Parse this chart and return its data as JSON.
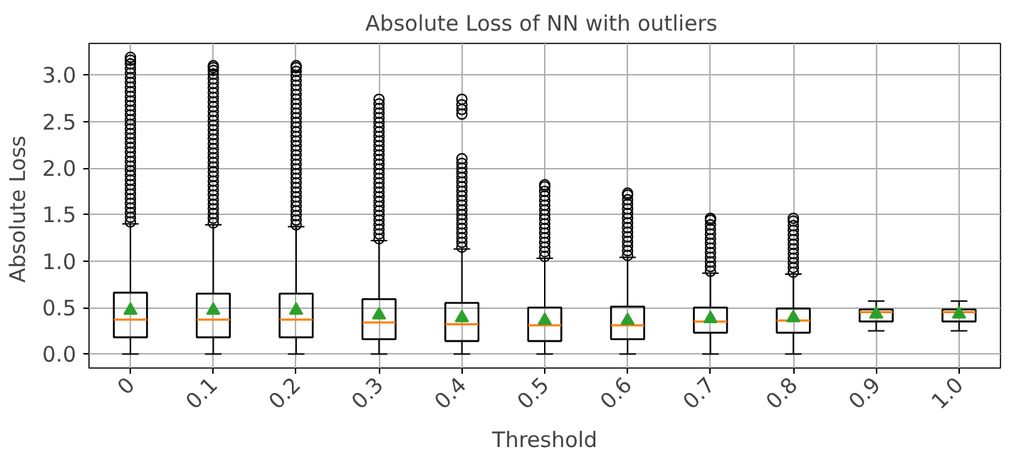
{
  "chart_data": {
    "type": "box",
    "title": "Absolute Loss of  NN with outliers",
    "xlabel": "Threshold",
    "ylabel": "Absolute  Loss",
    "categories": [
      "0",
      "0.1",
      "0.2",
      "0.3",
      "0.4",
      "0.5",
      "0.6",
      "0.7",
      "0.8",
      "0.9",
      "1.0"
    ],
    "boxes": [
      {
        "low": 0,
        "q1": 0.18,
        "median": 0.37,
        "q3": 0.66,
        "high": 1.4,
        "mean": 0.47,
        "outliers": [
          1.42,
          1.47,
          1.52,
          1.57,
          1.62,
          1.67,
          1.72,
          1.77,
          1.82,
          1.87,
          1.92,
          1.97,
          2.02,
          2.07,
          2.12,
          2.17,
          2.22,
          2.27,
          2.32,
          2.37,
          2.42,
          2.47,
          2.52,
          2.57,
          2.62,
          2.67,
          2.72,
          2.77,
          2.82,
          2.87,
          2.92,
          2.97,
          3.02,
          3.07,
          3.12,
          3.16,
          3.19
        ]
      },
      {
        "low": 0,
        "q1": 0.18,
        "median": 0.37,
        "q3": 0.65,
        "high": 1.39,
        "mean": 0.47,
        "outliers": [
          1.41,
          1.46,
          1.51,
          1.56,
          1.61,
          1.66,
          1.71,
          1.76,
          1.81,
          1.86,
          1.91,
          1.96,
          2.01,
          2.06,
          2.11,
          2.16,
          2.21,
          2.26,
          2.31,
          2.36,
          2.41,
          2.46,
          2.51,
          2.56,
          2.61,
          2.66,
          2.71,
          2.76,
          2.81,
          2.86,
          2.91,
          2.96,
          3.01,
          3.05,
          3.08,
          3.1
        ]
      },
      {
        "low": 0,
        "q1": 0.18,
        "median": 0.37,
        "q3": 0.65,
        "high": 1.37,
        "mean": 0.47,
        "outliers": [
          1.39,
          1.44,
          1.49,
          1.54,
          1.59,
          1.64,
          1.69,
          1.74,
          1.79,
          1.84,
          1.89,
          1.94,
          1.99,
          2.04,
          2.09,
          2.14,
          2.19,
          2.24,
          2.29,
          2.34,
          2.39,
          2.44,
          2.49,
          2.54,
          2.59,
          2.64,
          2.69,
          2.74,
          2.79,
          2.84,
          2.89,
          2.94,
          2.99,
          3.04,
          3.08,
          3.1
        ]
      },
      {
        "low": 0,
        "q1": 0.16,
        "median": 0.34,
        "q3": 0.59,
        "high": 1.22,
        "mean": 0.42,
        "outliers": [
          1.24,
          1.29,
          1.34,
          1.39,
          1.44,
          1.49,
          1.54,
          1.59,
          1.64,
          1.69,
          1.74,
          1.79,
          1.84,
          1.89,
          1.94,
          1.99,
          2.04,
          2.09,
          2.14,
          2.19,
          2.24,
          2.29,
          2.34,
          2.39,
          2.44,
          2.49,
          2.54,
          2.59,
          2.64,
          2.69,
          2.74
        ]
      },
      {
        "low": 0,
        "q1": 0.14,
        "median": 0.32,
        "q3": 0.55,
        "high": 1.13,
        "mean": 0.39,
        "outliers": [
          1.15,
          1.2,
          1.25,
          1.3,
          1.35,
          1.4,
          1.45,
          1.5,
          1.55,
          1.6,
          1.65,
          1.7,
          1.75,
          1.8,
          1.85,
          1.9,
          1.95,
          2.0,
          2.05,
          2.1,
          2.58,
          2.63,
          2.68,
          2.74
        ]
      },
      {
        "low": 0,
        "q1": 0.14,
        "median": 0.31,
        "q3": 0.5,
        "high": 1.03,
        "mean": 0.36,
        "outliers": [
          1.05,
          1.1,
          1.15,
          1.2,
          1.25,
          1.3,
          1.35,
          1.4,
          1.45,
          1.5,
          1.55,
          1.6,
          1.65,
          1.7,
          1.75,
          1.8,
          1.82
        ]
      },
      {
        "low": 0,
        "q1": 0.16,
        "median": 0.31,
        "q3": 0.51,
        "high": 1.04,
        "mean": 0.36,
        "outliers": [
          1.06,
          1.11,
          1.16,
          1.21,
          1.26,
          1.31,
          1.36,
          1.41,
          1.46,
          1.51,
          1.56,
          1.61,
          1.66,
          1.71,
          1.73
        ]
      },
      {
        "low": 0,
        "q1": 0.23,
        "median": 0.35,
        "q3": 0.5,
        "high": 0.87,
        "mean": 0.38,
        "outliers": [
          0.89,
          0.94,
          0.99,
          1.04,
          1.09,
          1.14,
          1.19,
          1.24,
          1.29,
          1.34,
          1.39,
          1.44,
          1.46
        ]
      },
      {
        "low": 0,
        "q1": 0.23,
        "median": 0.36,
        "q3": 0.49,
        "high": 0.86,
        "mean": 0.39,
        "outliers": [
          0.88,
          0.93,
          0.98,
          1.03,
          1.08,
          1.13,
          1.18,
          1.23,
          1.28,
          1.33,
          1.38,
          1.43,
          1.46
        ]
      },
      {
        "low": 0.25,
        "q1": 0.35,
        "median": 0.45,
        "q3": 0.48,
        "high": 0.57,
        "mean": 0.43
      },
      {
        "low": 0.25,
        "q1": 0.35,
        "median": 0.45,
        "q3": 0.48,
        "high": 0.57,
        "mean": 0.43
      }
    ],
    "ylim": [
      -0.15,
      3.34
    ],
    "yticks": [
      {
        "value": 0,
        "label": "0.0"
      },
      {
        "value": 0.5,
        "label": "0.5"
      },
      {
        "value": 1,
        "label": "1.0"
      },
      {
        "value": 1.5,
        "label": "1.5"
      },
      {
        "value": 2,
        "label": "2.0"
      },
      {
        "value": 2.5,
        "label": "2.5"
      },
      {
        "value": 3,
        "label": "3.0"
      }
    ],
    "grid": true,
    "marker": "triangle"
  }
}
